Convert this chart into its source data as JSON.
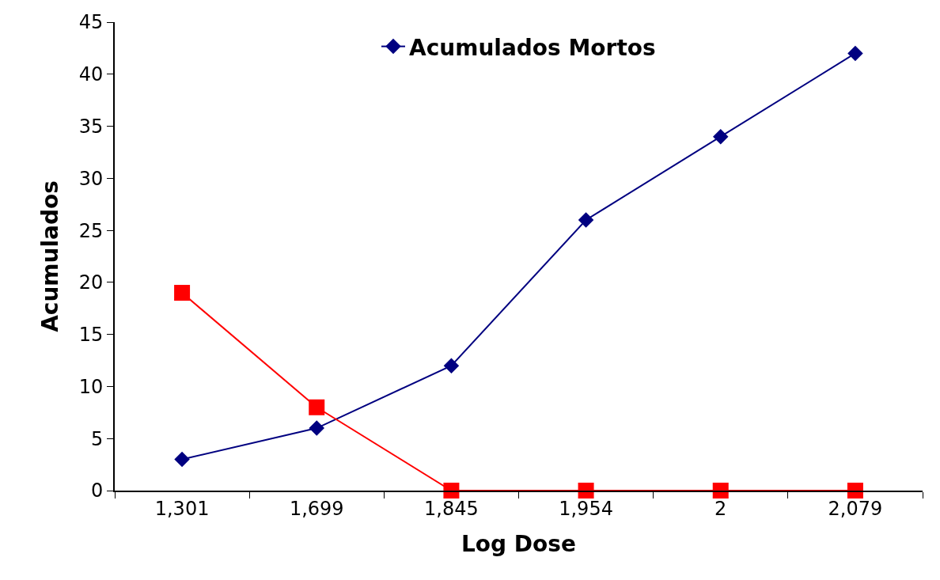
{
  "chart_data": {
    "type": "line",
    "xlabel": "Log Dose",
    "ylabel": "Acumulados",
    "categories": [
      "1,301",
      "1,699",
      "1,845",
      "1,954",
      "2",
      "2,079"
    ],
    "series": [
      {
        "name": "Acumulados Mortos",
        "color": "#000080",
        "marker": "diamond",
        "values": [
          3,
          6,
          12,
          26,
          34,
          42
        ]
      },
      {
        "color": "#ff0000",
        "marker": "square",
        "values": [
          19,
          8,
          0,
          0,
          0,
          0
        ]
      }
    ],
    "ylim": [
      0,
      45
    ],
    "yticks": [
      0,
      5,
      10,
      15,
      20,
      25,
      30,
      35,
      40,
      45
    ],
    "grid": false,
    "legend": "top"
  }
}
